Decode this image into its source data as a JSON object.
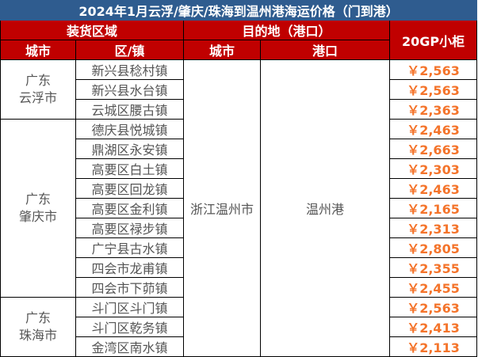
{
  "title": "2024年1月云浮/肇庆/珠海到温州港海运价格（门到港）",
  "headers": {
    "loading_area": "装货区域",
    "destination": "目的地（港口）",
    "price": "20GP小柜",
    "city": "城市",
    "district": "区/镇",
    "dest_city": "城市",
    "port": "港口"
  },
  "destination": {
    "city": "浙江温州市",
    "port": "温州港"
  },
  "groups": [
    {
      "province": "广东",
      "city": "云浮市",
      "rows": [
        {
          "district": "新兴县稔村镇",
          "price": "￥2,563"
        },
        {
          "district": "新兴县水台镇",
          "price": "￥2,563"
        },
        {
          "district": "云城区腰古镇",
          "price": "￥2,363"
        }
      ]
    },
    {
      "province": "广东",
      "city": "肇庆市",
      "rows": [
        {
          "district": "德庆县悦城镇",
          "price": "￥2,463"
        },
        {
          "district": "鼎湖区永安镇",
          "price": "￥2,663"
        },
        {
          "district": "高要区白土镇",
          "price": "￥2,303"
        },
        {
          "district": "高要区回龙镇",
          "price": "￥2,463"
        },
        {
          "district": "高要区金利镇",
          "price": "￥2,165"
        },
        {
          "district": "高要区禄步镇",
          "price": "￥2,313"
        },
        {
          "district": "广宁县古水镇",
          "price": "￥2,805"
        },
        {
          "district": "四会市龙甫镇",
          "price": "￥2,355"
        },
        {
          "district": "四会市下茆镇",
          "price": "￥2,455"
        }
      ]
    },
    {
      "province": "广东",
      "city": "珠海市",
      "rows": [
        {
          "district": "斗门区斗门镇",
          "price": "￥2,563"
        },
        {
          "district": "斗门区乾务镇",
          "price": "￥2,413"
        },
        {
          "district": "金湾区南水镇",
          "price": "￥2,113"
        }
      ]
    }
  ],
  "colors": {
    "title_bg": "#2f5c8f",
    "header_bg": "#c00000",
    "price": "#f4742b"
  }
}
